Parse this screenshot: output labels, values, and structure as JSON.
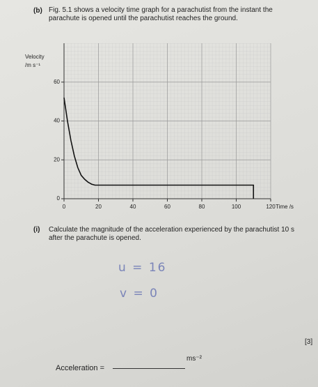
{
  "question_b": {
    "label": "(b)",
    "text": "Fig. 5.1 shows a velocity time graph for a parachutist from the instant the parachute is opened until the parachutist reaches the ground."
  },
  "chart_data": {
    "type": "line",
    "y_label_1": "Velocity",
    "y_label_2": "/m s⁻¹",
    "x_label": "Time /s",
    "x": [
      0,
      2,
      4,
      6,
      8,
      10,
      12,
      14,
      16,
      18,
      20,
      22,
      110,
      110
    ],
    "series": [
      {
        "name": "velocity",
        "color": "#111111",
        "values": [
          52,
          40,
          30,
          22,
          16,
          12,
          10,
          8.5,
          7.5,
          7,
          7,
          7,
          7,
          0
        ]
      }
    ],
    "xlim": [
      0,
      120
    ],
    "ylim": [
      0,
      80
    ],
    "xticks": [
      0,
      20,
      40,
      60,
      80,
      100,
      120
    ],
    "yticks": [
      0,
      20,
      40,
      60
    ],
    "grid": true
  },
  "question_i": {
    "label": "(i)",
    "text": "Calculate the magnitude of the acceleration experienced by the parachutist 10 s after the parachute is opened."
  },
  "handwriting": [
    "u = 16",
    "v = 0"
  ],
  "marks": "[3]",
  "answer": {
    "label": "Acceleration =",
    "unit": "ms⁻²"
  }
}
